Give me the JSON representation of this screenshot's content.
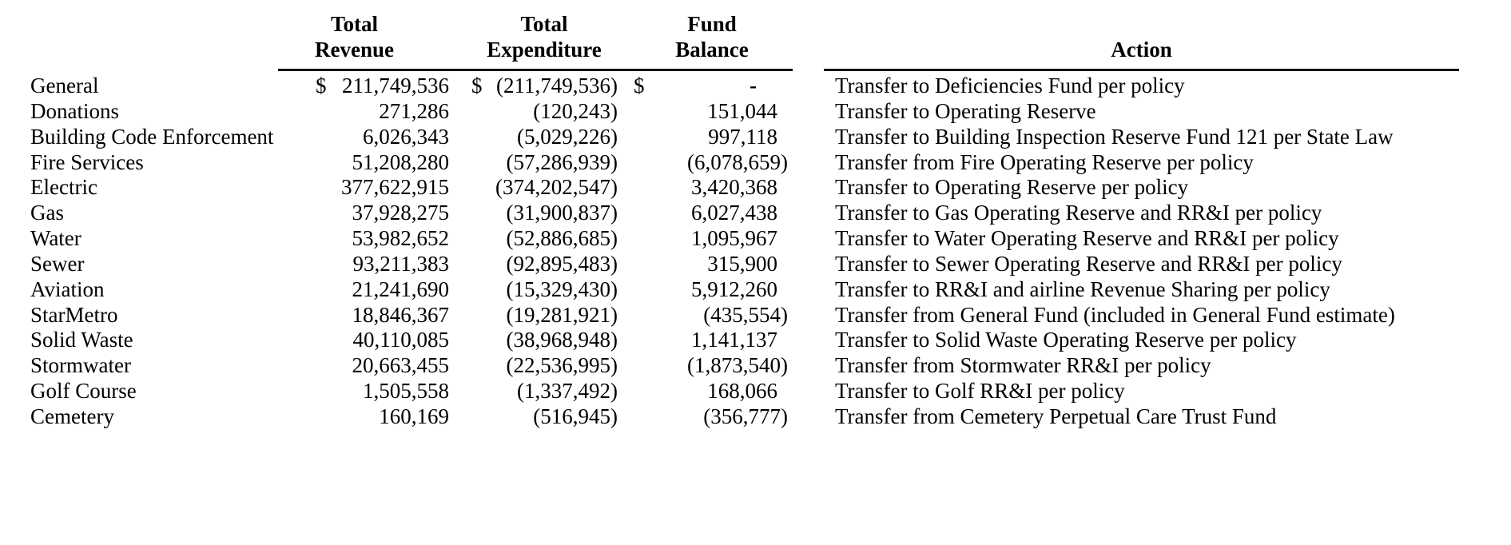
{
  "colors": {
    "background": "#ffffff",
    "text": "#000000",
    "rule": "#000000"
  },
  "table": {
    "headers": {
      "revenue_line1": "Total",
      "revenue_line2": "Revenue",
      "expenditure_line1": "Total",
      "expenditure_line2": "Expenditure",
      "balance_line1": "Fund",
      "balance_line2": "Balance",
      "action": "Action"
    },
    "rows": [
      {
        "fund": "General",
        "cur": "$",
        "revenue": "211,749,536",
        "expenditure": "(211,749,536)",
        "balance": "-",
        "action": "Transfer to Deficiencies Fund per policy"
      },
      {
        "fund": "Donations",
        "cur": "",
        "revenue": "271,286",
        "expenditure": "(120,243)",
        "balance": "151,044",
        "action": "Transfer to Operating Reserve"
      },
      {
        "fund": "Building Code Enforcement",
        "cur": "",
        "revenue": "6,026,343",
        "expenditure": "(5,029,226)",
        "balance": "997,118",
        "action": "Transfer to Building Inspection Reserve Fund 121 per State Law"
      },
      {
        "fund": "Fire Services",
        "cur": "",
        "revenue": "51,208,280",
        "expenditure": "(57,286,939)",
        "balance": "(6,078,659)",
        "action": "Transfer from Fire Operating Reserve per policy"
      },
      {
        "fund": "Electric",
        "cur": "",
        "revenue": "377,622,915",
        "expenditure": "(374,202,547)",
        "balance": "3,420,368",
        "action": "Transfer to Operating Reserve per policy"
      },
      {
        "fund": "Gas",
        "cur": "",
        "revenue": "37,928,275",
        "expenditure": "(31,900,837)",
        "balance": "6,027,438",
        "action": "Transfer to Gas Operating Reserve and RR&I per policy"
      },
      {
        "fund": "Water",
        "cur": "",
        "revenue": "53,982,652",
        "expenditure": "(52,886,685)",
        "balance": "1,095,967",
        "action": "Transfer to Water Operating Reserve and RR&I per policy"
      },
      {
        "fund": "Sewer",
        "cur": "",
        "revenue": "93,211,383",
        "expenditure": "(92,895,483)",
        "balance": "315,900",
        "action": "Transfer to Sewer Operating Reserve and RR&I per policy"
      },
      {
        "fund": "Aviation",
        "cur": "",
        "revenue": "21,241,690",
        "expenditure": "(15,329,430)",
        "balance": "5,912,260",
        "action": "Transfer to RR&I and airline Revenue Sharing per policy"
      },
      {
        "fund": "StarMetro",
        "cur": "",
        "revenue": "18,846,367",
        "expenditure": "(19,281,921)",
        "balance": "(435,554)",
        "action": "Transfer from General Fund (included in General Fund estimate)"
      },
      {
        "fund": "Solid Waste",
        "cur": "",
        "revenue": "40,110,085",
        "expenditure": "(38,968,948)",
        "balance": "1,141,137",
        "action": "Transfer to Solid Waste Operating Reserve per policy"
      },
      {
        "fund": "Stormwater",
        "cur": "",
        "revenue": "20,663,455",
        "expenditure": "(22,536,995)",
        "balance": "(1,873,540)",
        "action": "Transfer from Stormwater RR&I per policy"
      },
      {
        "fund": "Golf Course",
        "cur": "",
        "revenue": "1,505,558",
        "expenditure": "(1,337,492)",
        "balance": "168,066",
        "action": "Transfer to Golf RR&I per policy"
      },
      {
        "fund": "Cemetery",
        "cur": "",
        "revenue": "160,169",
        "expenditure": "(516,945)",
        "balance": "(356,777)",
        "action": "Transfer from Cemetery Perpetual Care Trust Fund"
      }
    ]
  }
}
